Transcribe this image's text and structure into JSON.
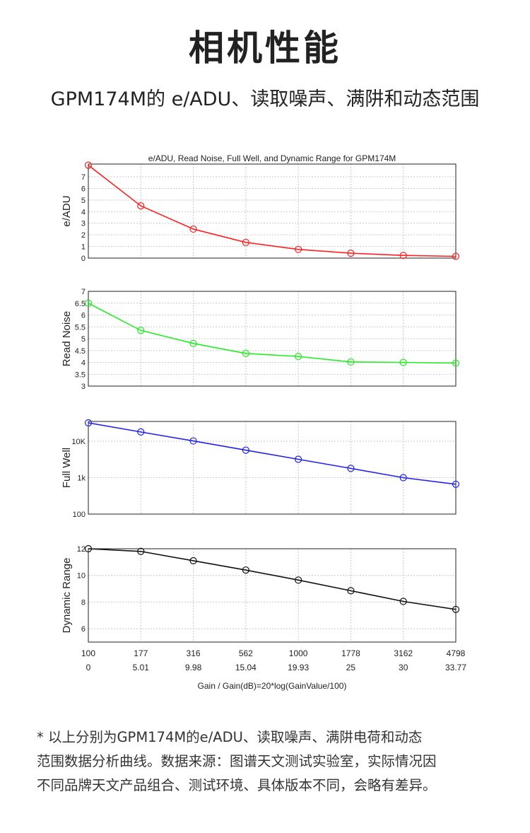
{
  "page": {
    "title": "相机性能",
    "subtitle": "GPM174M的 e/ADU、读取噪声、满阱和动态范围",
    "footnote_lines": [
      "*  以上分别为GPM174M的e/ADU、读取噪声、满阱电荷和动态",
      "范围数据分析曲线。数据来源：图谱天文测试实验室，实际情况因",
      "不同品牌天文产品组合、测试环境、具体版本不同，会略有差异。"
    ]
  },
  "chart_data": {
    "title": "e/ADU, Read Noise, Full Well, and Dynamic Range for GPM174M",
    "xlabel": "Gain / Gain(dB)=20*log(GainValue/100)",
    "gain_ticks": [
      "100",
      "177",
      "316",
      "562",
      "1000",
      "1778",
      "3162",
      "4798"
    ],
    "gain_db_ticks": [
      "0",
      "5.01",
      "9.98",
      "15.04",
      "19.93",
      "25",
      "30",
      "33.77"
    ],
    "panels": [
      {
        "type": "line",
        "name": "e/ADU",
        "ylabel": "e/ADU",
        "color": "#ff2020",
        "scale": "linear",
        "ylim": [
          0,
          8.1
        ],
        "yticks": [
          0,
          1,
          2,
          3,
          4,
          5,
          6,
          7
        ],
        "ytick_labels": [
          "0",
          "1",
          "2",
          "3",
          "4",
          "5",
          "6",
          "7"
        ],
        "values": [
          8.0,
          4.5,
          2.5,
          1.35,
          0.75,
          0.42,
          0.23,
          0.15
        ]
      },
      {
        "type": "line",
        "name": "Read Noise",
        "ylabel": "Read Noise",
        "color": "#22ee22",
        "scale": "linear",
        "ylim": [
          3,
          7
        ],
        "yticks": [
          3,
          3.5,
          4,
          4.5,
          5,
          5.5,
          6,
          6.5,
          7
        ],
        "ytick_labels": [
          "3",
          "3.5",
          "4",
          "4.5",
          "5",
          "5.5",
          "6",
          "6.5",
          "7"
        ],
        "values": [
          6.5,
          5.35,
          4.8,
          4.38,
          4.25,
          4.02,
          4.0,
          3.97
        ]
      },
      {
        "type": "line",
        "name": "Full Well",
        "ylabel": "Full Well",
        "color": "#2222ee",
        "scale": "log",
        "ylim": [
          100,
          35000
        ],
        "yticks": [
          100,
          1000,
          10000
        ],
        "ytick_labels": [
          "100",
          "1k",
          "10K"
        ],
        "values": [
          32000,
          18000,
          10200,
          5700,
          3200,
          1800,
          1000,
          660
        ]
      },
      {
        "type": "line",
        "name": "Dynamic Range",
        "ylabel": "Dynamic Range",
        "color": "#111111",
        "scale": "linear",
        "ylim": [
          5,
          12
        ],
        "yticks": [
          6,
          8,
          10,
          12
        ],
        "ytick_labels": [
          "6",
          "8",
          "10",
          "12"
        ],
        "values": [
          12.0,
          11.8,
          11.1,
          10.4,
          9.65,
          8.85,
          8.05,
          7.45
        ]
      }
    ]
  }
}
